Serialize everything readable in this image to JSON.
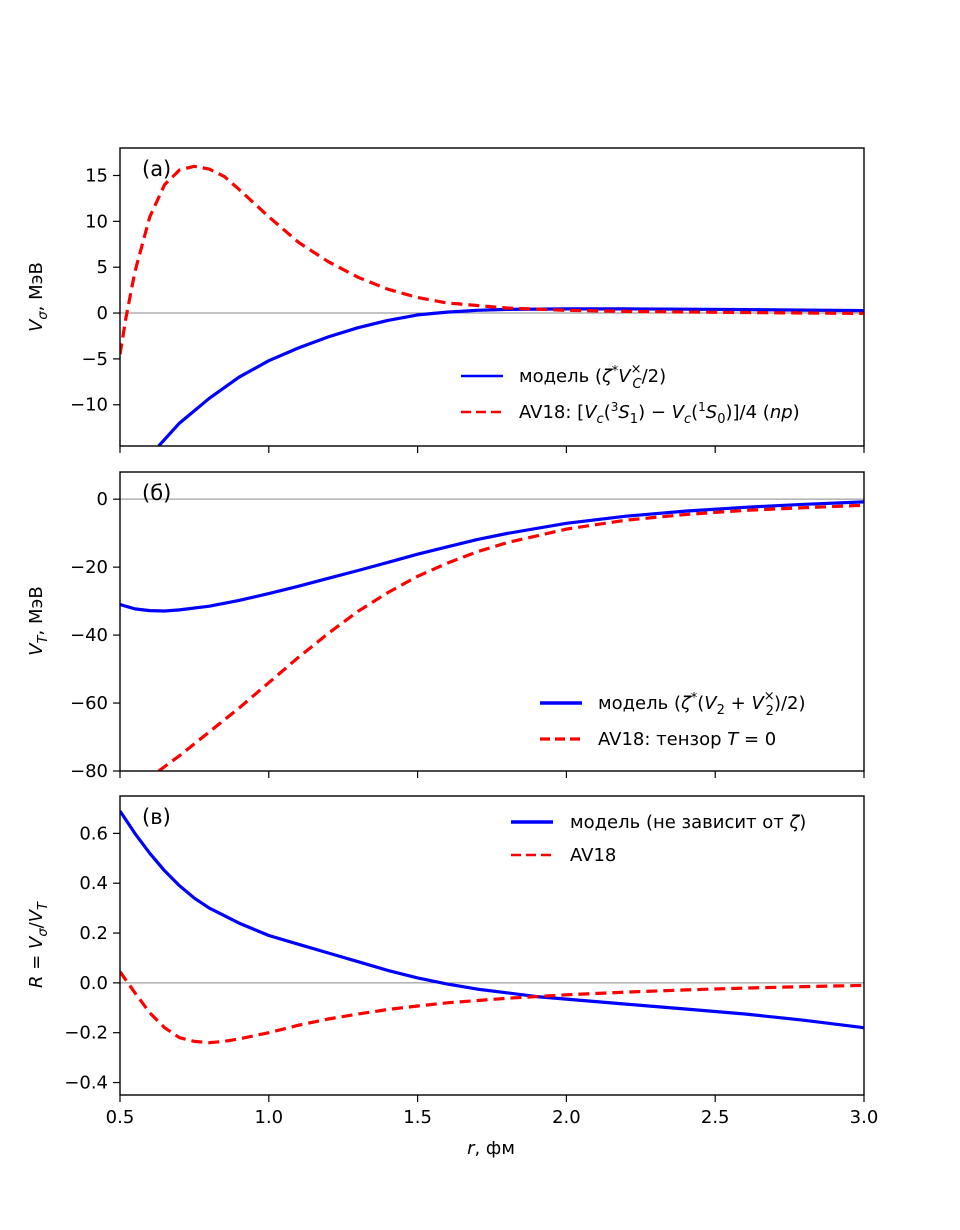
{
  "chart_data": [
    {
      "type": "line",
      "panel_label": "(а)",
      "ylabel_html": "V<tspan font-style='italic'>σ</tspan>",
      "ylabel": "Vσ, МэВ",
      "ylim": [
        -14.5,
        18
      ],
      "xlim": [
        0.5,
        3.0
      ],
      "yticks": [
        -10,
        -5,
        0,
        5,
        10,
        15
      ],
      "ytick_labels": [
        "−10",
        "−5",
        "0",
        "5",
        "10",
        "15"
      ],
      "zero_line": true,
      "legend_position": "lower-right",
      "series": [
        {
          "name": "модель (ζ*V_C^×/2)",
          "color": "#0000ff",
          "style": "solid",
          "x": [
            0.63,
            0.7,
            0.8,
            0.9,
            1.0,
            1.1,
            1.2,
            1.3,
            1.4,
            1.5,
            1.6,
            1.7,
            1.8,
            2.0,
            2.2,
            2.4,
            2.6,
            2.8,
            3.0
          ],
          "y": [
            -14.5,
            -12.0,
            -9.3,
            -7.0,
            -5.2,
            -3.8,
            -2.6,
            -1.6,
            -0.8,
            -0.2,
            0.1,
            0.3,
            0.4,
            0.45,
            0.45,
            0.42,
            0.38,
            0.32,
            0.27
          ]
        },
        {
          "name": "AV18: [V_c(3S1) − V_c(1S0)]/4 (np)",
          "color": "#ff0000",
          "style": "dashed",
          "x": [
            0.5,
            0.52,
            0.55,
            0.6,
            0.65,
            0.7,
            0.75,
            0.8,
            0.85,
            0.9,
            1.0,
            1.1,
            1.2,
            1.3,
            1.4,
            1.5,
            1.6,
            1.8,
            2.0,
            2.2,
            2.5,
            2.8,
            3.0
          ],
          "y": [
            -4.5,
            -0.5,
            4.5,
            10.5,
            14.0,
            15.6,
            16.0,
            15.7,
            14.9,
            13.5,
            10.5,
            7.7,
            5.6,
            3.9,
            2.6,
            1.7,
            1.1,
            0.55,
            0.3,
            0.18,
            0.08,
            0.0,
            -0.05
          ]
        }
      ],
      "legend": [
        {
          "text": "модель (",
          "math": "ζ*V_C^×/2",
          "suffix": ")"
        },
        {
          "text": "AV18: [V_c(3S1) − V_c(1S0)]/4 (np)"
        }
      ]
    },
    {
      "type": "line",
      "panel_label": "(б)",
      "ylabel": "VT, МэВ",
      "ylim": [
        -80,
        8
      ],
      "xlim": [
        0.5,
        3.0
      ],
      "yticks": [
        -80,
        -60,
        -40,
        -20,
        0
      ],
      "ytick_labels": [
        "−80",
        "−60",
        "−40",
        "−20",
        "0"
      ],
      "zero_line": true,
      "legend_position": "lower-right",
      "series": [
        {
          "name": "модель (ζ*(V2 + V2^×)/2)",
          "color": "#0000ff",
          "style": "solid",
          "x": [
            0.5,
            0.55,
            0.6,
            0.65,
            0.7,
            0.8,
            0.9,
            1.0,
            1.1,
            1.2,
            1.3,
            1.4,
            1.5,
            1.6,
            1.7,
            1.8,
            2.0,
            2.2,
            2.4,
            2.6,
            2.8,
            3.0
          ],
          "y": [
            -31.0,
            -32.3,
            -32.8,
            -32.9,
            -32.6,
            -31.5,
            -29.8,
            -27.8,
            -25.6,
            -23.3,
            -21.0,
            -18.6,
            -16.2,
            -14.0,
            -11.9,
            -10.1,
            -7.1,
            -5.0,
            -3.5,
            -2.4,
            -1.5,
            -0.8
          ]
        },
        {
          "name": "AV18: тензор T = 0",
          "color": "#ff0000",
          "style": "dashed",
          "x": [
            0.63,
            0.7,
            0.8,
            0.9,
            1.0,
            1.1,
            1.2,
            1.3,
            1.4,
            1.5,
            1.6,
            1.7,
            1.8,
            2.0,
            2.2,
            2.4,
            2.6,
            2.8,
            3.0
          ],
          "y": [
            -80,
            -75.5,
            -68.5,
            -61.5,
            -54.0,
            -46.5,
            -39.5,
            -33.0,
            -27.5,
            -22.7,
            -18.8,
            -15.5,
            -12.8,
            -8.8,
            -6.2,
            -4.5,
            -3.3,
            -2.5,
            -1.8
          ]
        }
      ]
    },
    {
      "type": "line",
      "panel_label": "(в)",
      "ylabel": "R = Vσ/VT",
      "xlabel": "r, фм",
      "ylim": [
        -0.45,
        0.75
      ],
      "xlim": [
        0.5,
        3.0
      ],
      "yticks": [
        -0.4,
        -0.2,
        0.0,
        0.2,
        0.4,
        0.6
      ],
      "ytick_labels": [
        "−0.4",
        "−0.2",
        "0.0",
        "0.2",
        "0.4",
        "0.6"
      ],
      "xticks": [
        0.5,
        1.0,
        1.5,
        2.0,
        2.5,
        3.0
      ],
      "xtick_labels": [
        "0.5",
        "1.0",
        "1.5",
        "2.0",
        "2.5",
        "3.0"
      ],
      "zero_line": true,
      "legend_position": "upper-right",
      "series": [
        {
          "name": "модель (не зависит от ζ)",
          "color": "#0000ff",
          "style": "solid",
          "x": [
            0.5,
            0.55,
            0.6,
            0.65,
            0.7,
            0.75,
            0.8,
            0.9,
            1.0,
            1.1,
            1.2,
            1.3,
            1.4,
            1.5,
            1.6,
            1.7,
            1.8,
            1.9,
            2.0,
            2.2,
            2.4,
            2.6,
            2.8,
            3.0
          ],
          "y": [
            0.69,
            0.6,
            0.52,
            0.45,
            0.39,
            0.34,
            0.3,
            0.24,
            0.19,
            0.155,
            0.12,
            0.085,
            0.05,
            0.02,
            -0.005,
            -0.025,
            -0.04,
            -0.055,
            -0.065,
            -0.085,
            -0.105,
            -0.125,
            -0.15,
            -0.18
          ]
        },
        {
          "name": "AV18",
          "color": "#ff0000",
          "style": "dashed",
          "x": [
            0.5,
            0.55,
            0.6,
            0.65,
            0.7,
            0.75,
            0.8,
            0.85,
            0.9,
            1.0,
            1.1,
            1.2,
            1.3,
            1.4,
            1.5,
            1.6,
            1.8,
            2.0,
            2.2,
            2.4,
            2.6,
            2.8,
            3.0
          ],
          "y": [
            0.045,
            -0.04,
            -0.12,
            -0.18,
            -0.22,
            -0.235,
            -0.24,
            -0.235,
            -0.225,
            -0.2,
            -0.17,
            -0.145,
            -0.125,
            -0.107,
            -0.093,
            -0.08,
            -0.062,
            -0.048,
            -0.037,
            -0.028,
            -0.021,
            -0.015,
            -0.01
          ]
        }
      ]
    }
  ]
}
